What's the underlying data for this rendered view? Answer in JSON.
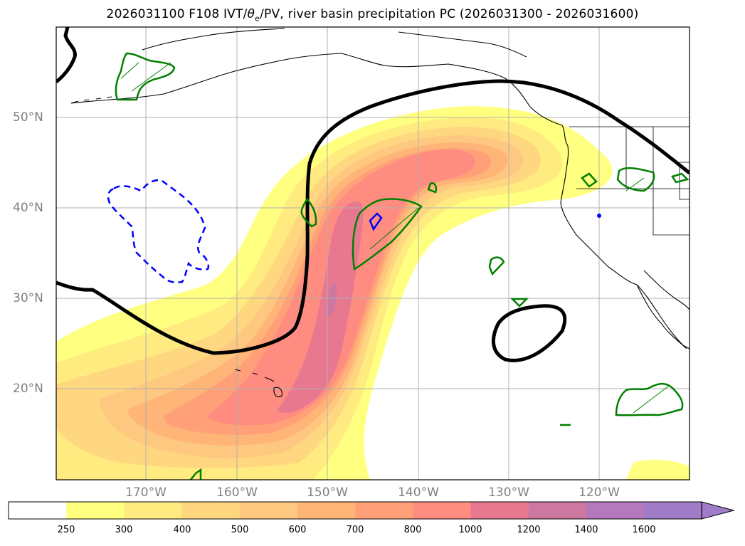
{
  "title": "2026031100 F108 IVT/θe/PV, river basin precipitation PC (2026031300 - 2026031600)",
  "title_parts": {
    "before": "2026031100 F108 IVT/",
    "theta": "θ",
    "sub": "e",
    "after": "/PV, river basin precipitation PC (2026031300 - 2026031600)"
  },
  "lat_labels": [
    "50°N",
    "40°N",
    "30°N",
    "20°N"
  ],
  "lon_labels": [
    "170°W",
    "160°W",
    "150°W",
    "140°W",
    "130°W",
    "120°W"
  ],
  "colorbar": {
    "ticks": [
      "250",
      "300",
      "400",
      "500",
      "600",
      "700",
      "800",
      "1000",
      "1200",
      "1400",
      "1600"
    ],
    "colors": [
      "#ffffff",
      "#ffff80",
      "#ffeb80",
      "#ffd780",
      "#ffc880",
      "#ffb478",
      "#ffa078",
      "#ff8c80",
      "#e87890",
      "#cc78a0",
      "#b478bc",
      "#a07cc8"
    ],
    "extend": "max"
  },
  "colors": {
    "ar_core": "#e8788c",
    "ar_outer": "#ffff80",
    "theta_contour": "#000000",
    "precip_positive": "#008000",
    "precip_negative": "#0000ff",
    "gridline": "#b0b0b0",
    "tick_label": "#808080"
  }
}
